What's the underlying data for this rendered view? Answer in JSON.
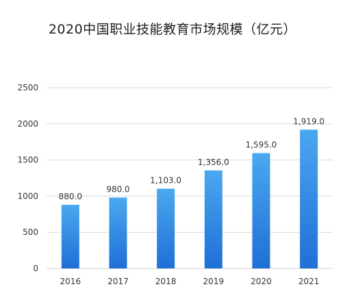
{
  "chart_data": {
    "type": "bar",
    "title": "2020中国职业技能教育市场规模（亿元）",
    "categories": [
      "2016",
      "2017",
      "2018",
      "2019",
      "2020",
      "2021"
    ],
    "values": [
      880.0,
      980.0,
      1103.0,
      1356.0,
      1595.0,
      1919.0
    ],
    "data_labels": [
      "880.0",
      "980.0",
      "1,103.0",
      "1,356.0",
      "1,595.0",
      "1,919.0"
    ],
    "xlabel": "",
    "ylabel": "",
    "ylim": [
      0,
      2500
    ],
    "yticks": [
      0,
      500,
      1000,
      1500,
      2000,
      2500
    ],
    "grid": true,
    "bar_color_top": "#4aa8f0",
    "bar_color_bottom": "#1f6fd6",
    "grid_color": "#d9d9d9"
  }
}
